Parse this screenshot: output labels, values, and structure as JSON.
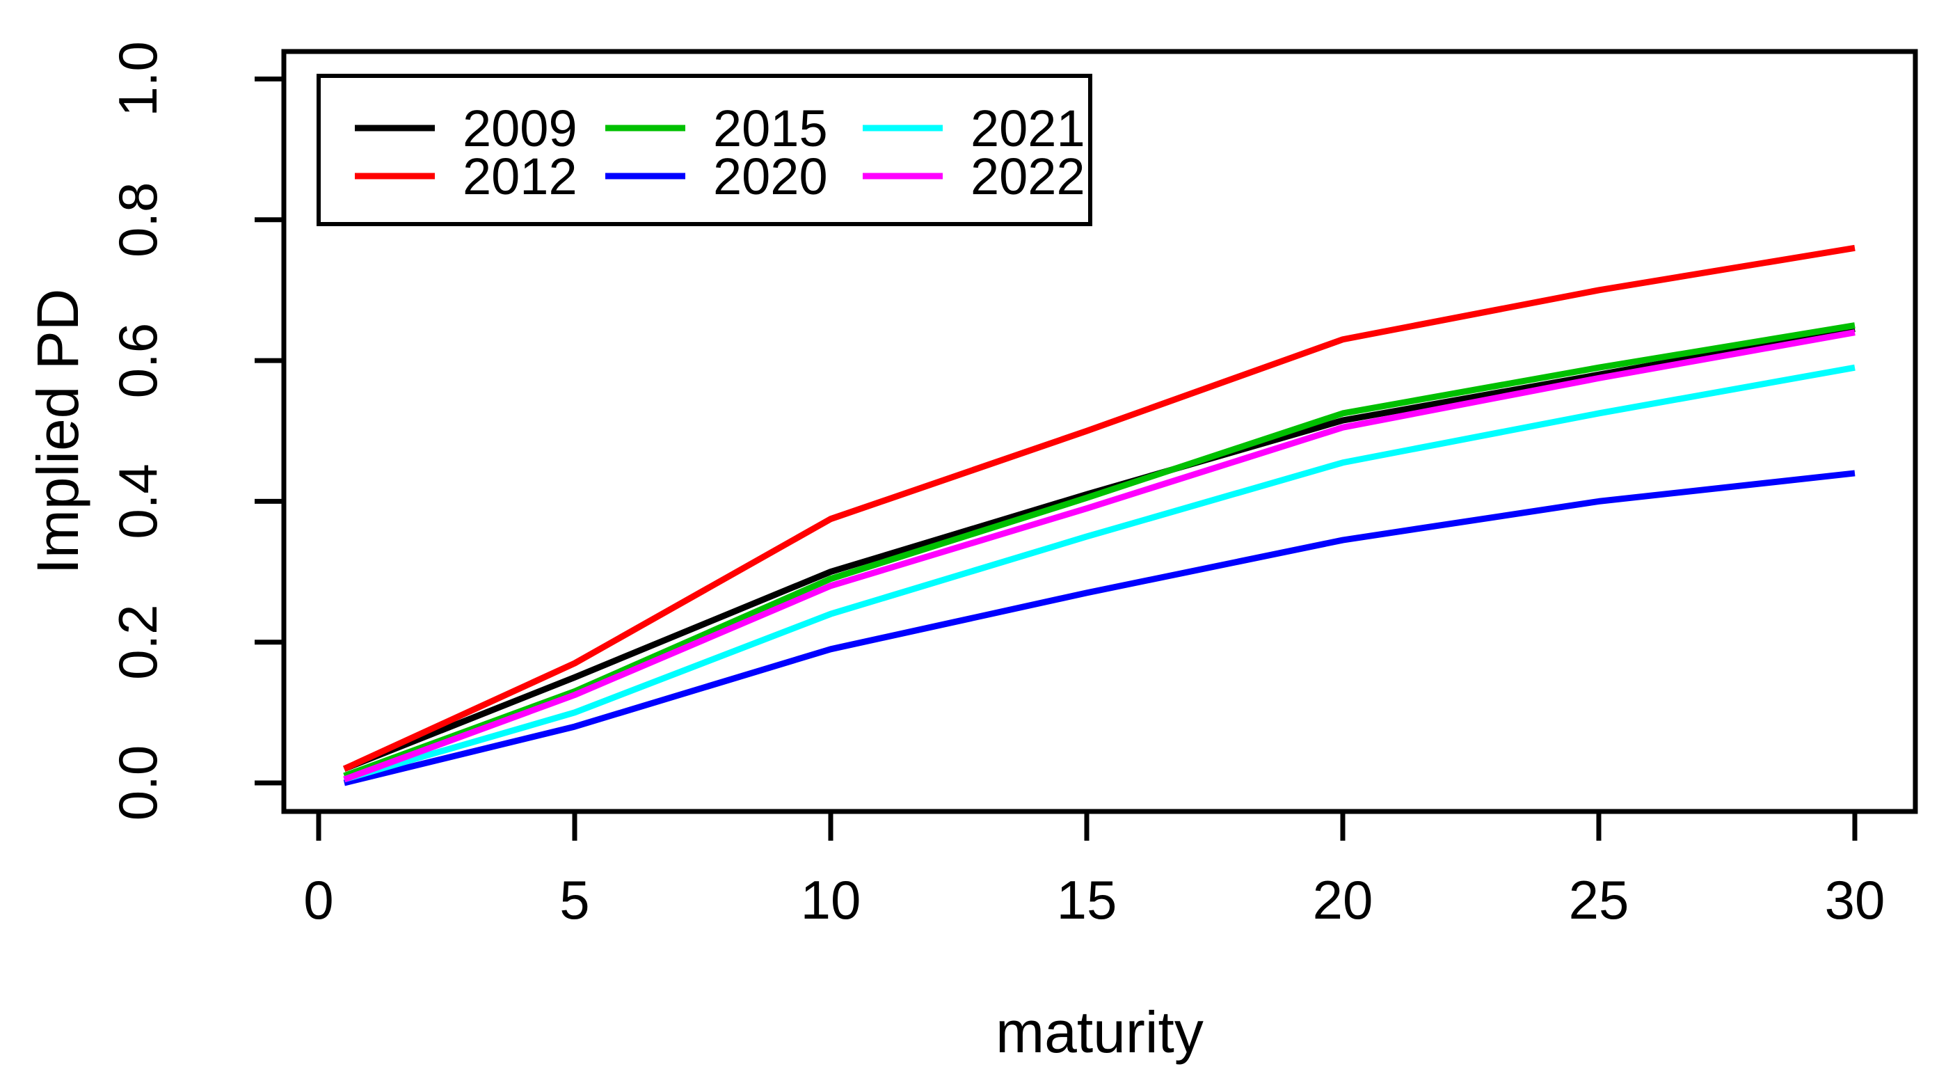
{
  "figure": {
    "background": "#ffffff",
    "axis_color": "#000000"
  },
  "chart_data": {
    "type": "line",
    "title": "",
    "xlabel": "maturity",
    "ylabel": "Implied PD",
    "xlim": [
      -0.7,
      30.7
    ],
    "ylim": [
      -0.04,
      1.04
    ],
    "grid": false,
    "x_ticks": [
      0,
      5,
      10,
      15,
      20,
      25,
      30
    ],
    "x_tick_labels": [
      "0",
      "5",
      "10",
      "15",
      "20",
      "25",
      "30"
    ],
    "y_ticks": [
      0.0,
      0.2,
      0.4,
      0.6,
      0.8,
      1.0
    ],
    "y_tick_labels": [
      "0.0",
      "0.2",
      "0.4",
      "0.6",
      "0.8",
      "1.0"
    ],
    "x": [
      0.5,
      5,
      10,
      15,
      20,
      25,
      30
    ],
    "series": [
      {
        "name": "2009",
        "color": "#000000",
        "values": [
          0.02,
          0.15,
          0.3,
          0.41,
          0.515,
          0.58,
          0.645
        ]
      },
      {
        "name": "2012",
        "color": "#FF0000",
        "values": [
          0.02,
          0.17,
          0.375,
          0.5,
          0.63,
          0.7,
          0.76
        ]
      },
      {
        "name": "2015",
        "color": "#00C000",
        "values": [
          0.01,
          0.13,
          0.29,
          0.405,
          0.525,
          0.59,
          0.65
        ]
      },
      {
        "name": "2020",
        "color": "#0000FF",
        "values": [
          0.0,
          0.08,
          0.19,
          0.27,
          0.345,
          0.4,
          0.44
        ]
      },
      {
        "name": "2021",
        "color": "#00FFFF",
        "values": [
          0.005,
          0.1,
          0.24,
          0.35,
          0.455,
          0.525,
          0.59
        ]
      },
      {
        "name": "2022",
        "color": "#FF00FF",
        "values": [
          0.005,
          0.125,
          0.28,
          0.39,
          0.505,
          0.575,
          0.64
        ]
      }
    ],
    "legend_position": "top-left",
    "legend_rows": 2,
    "legend_columns": 3,
    "legend_order_column_major": [
      "2009",
      "2012",
      "2015",
      "2020",
      "2021",
      "2022"
    ]
  }
}
